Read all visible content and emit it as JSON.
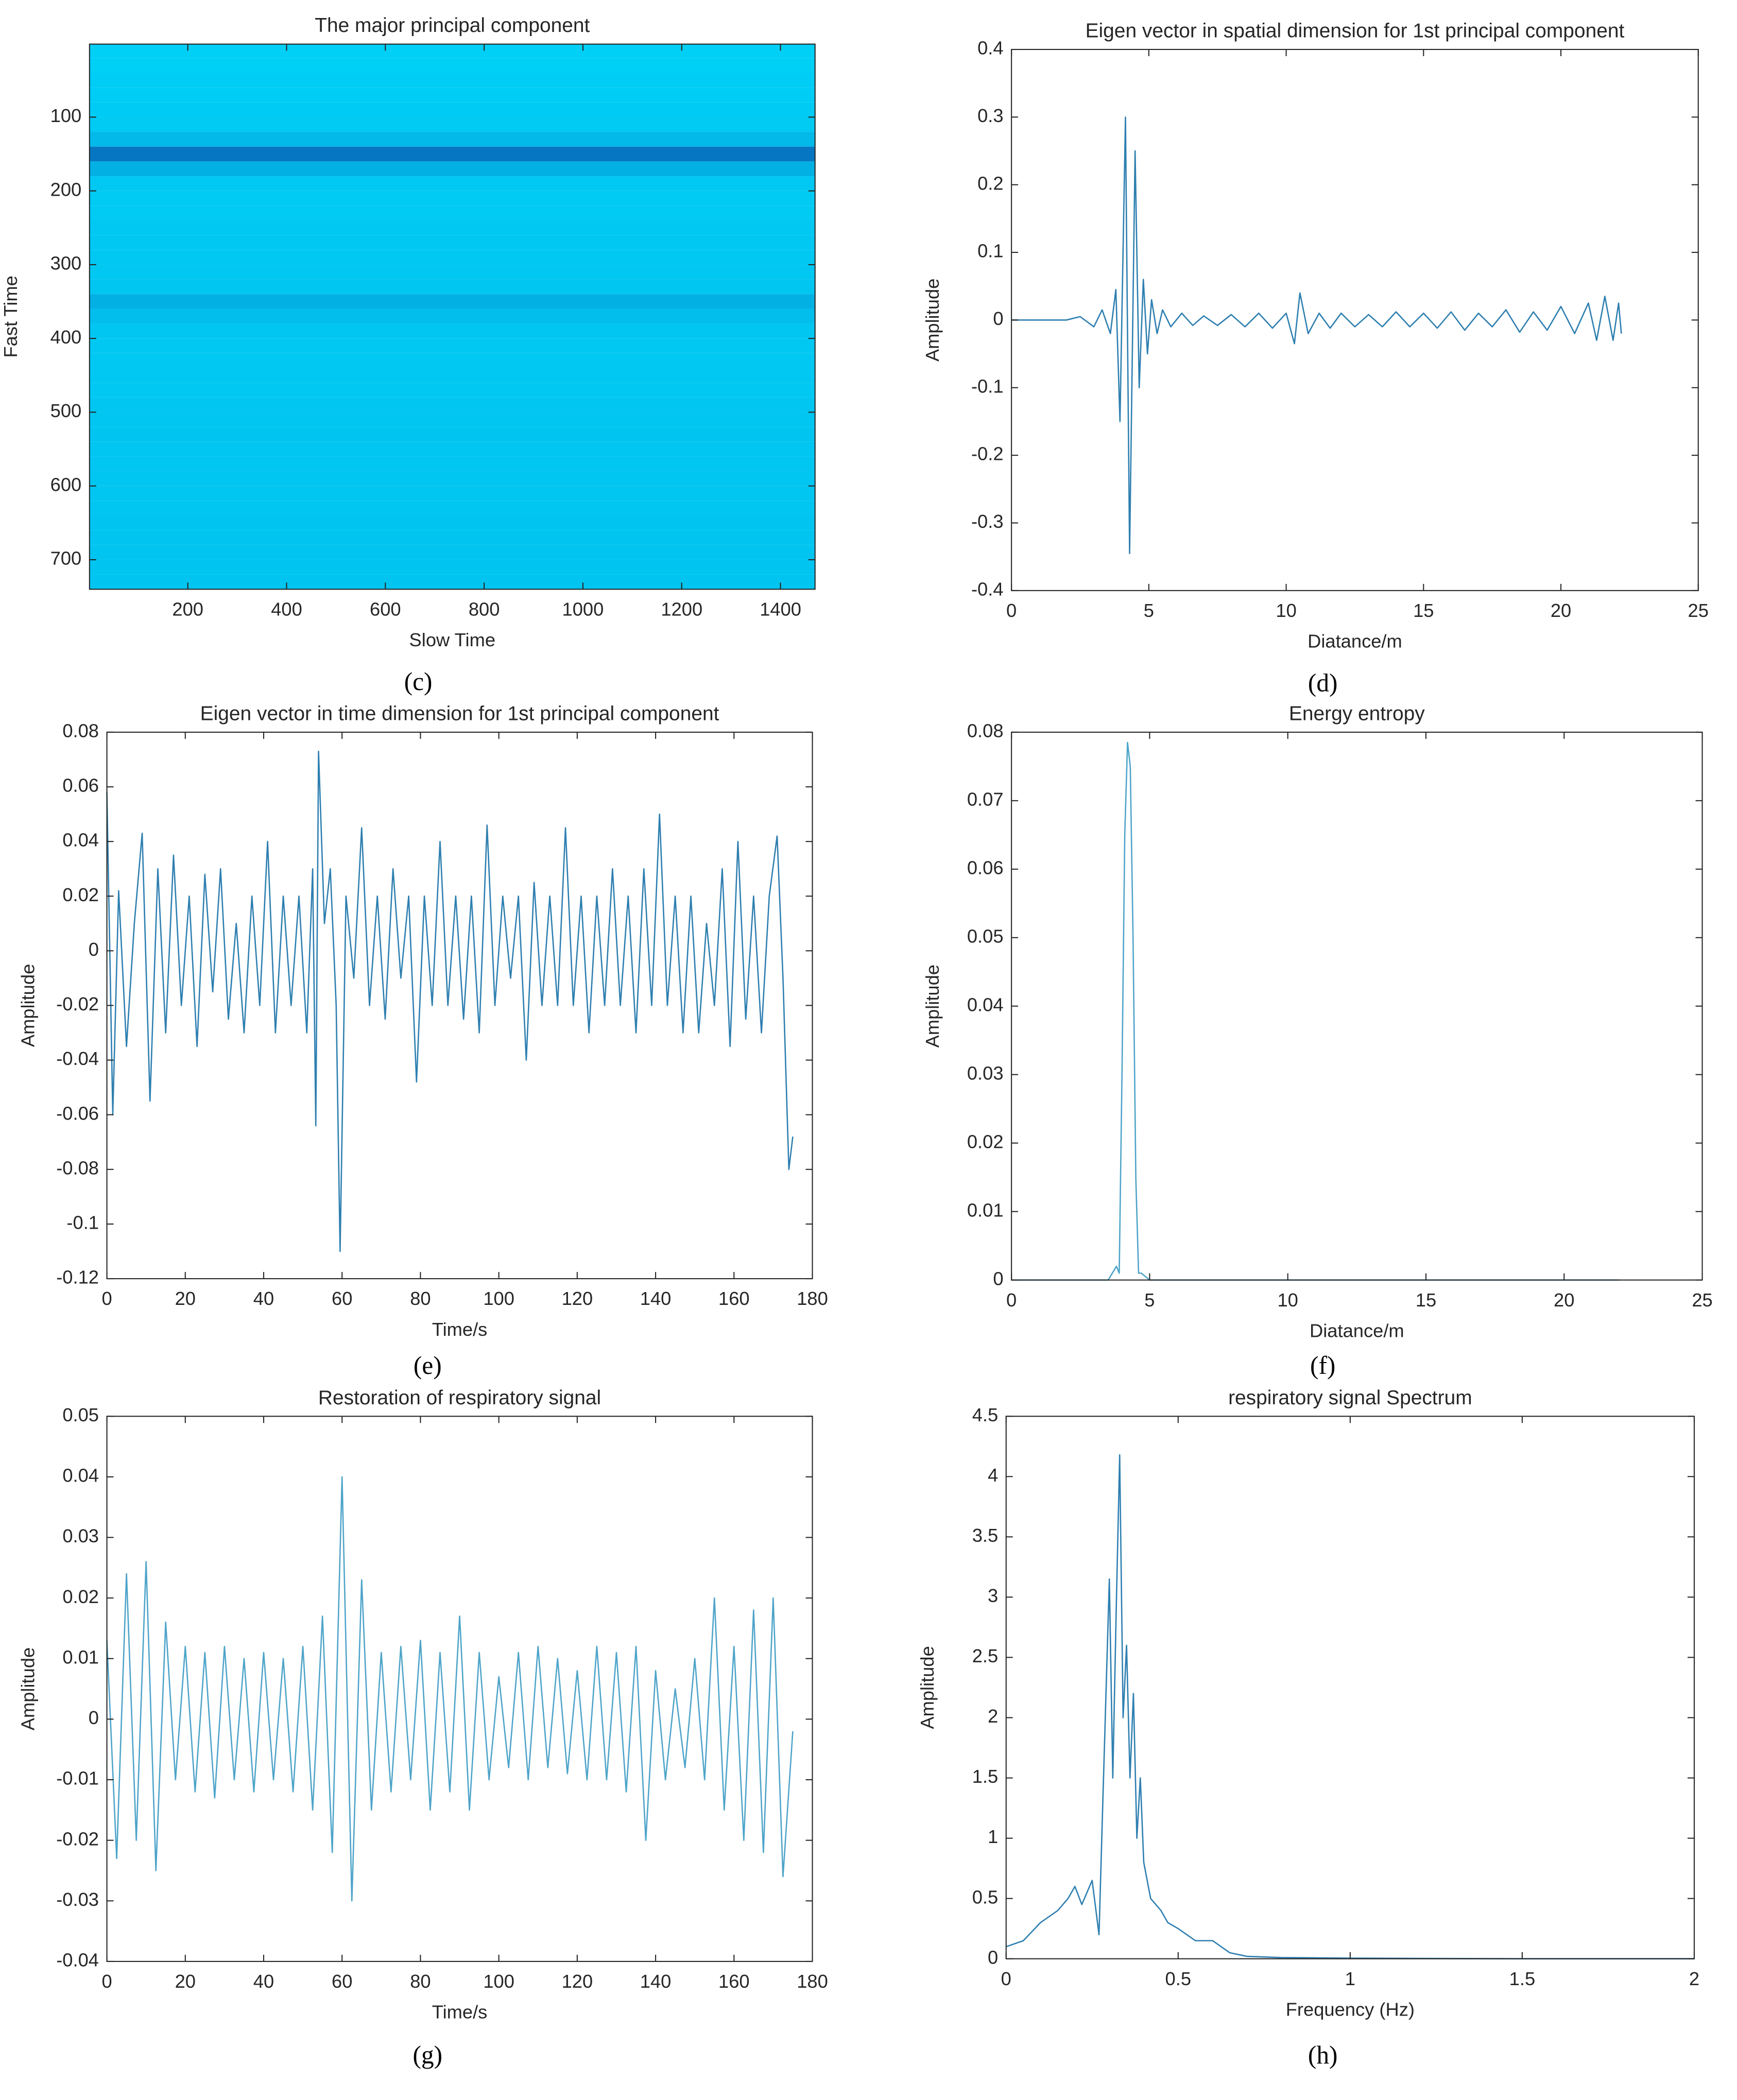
{
  "chart_data": [
    {
      "type": "heatmap",
      "title": "The major principal component",
      "xlabel": "Slow Time",
      "ylabel": "Fast Time",
      "caption": "(c)",
      "xlim": [
        1,
        1470
      ],
      "xticks": [
        200,
        400,
        600,
        800,
        1000,
        1200,
        1400
      ],
      "ylim": [
        1,
        740
      ],
      "yticks": [
        100,
        200,
        300,
        400,
        500,
        600,
        700
      ],
      "yreverse": true,
      "colors": [
        "#00d2f8",
        "#0a2a96"
      ],
      "y": [
        10,
        30,
        50,
        70,
        90,
        110,
        130,
        150,
        170,
        190,
        210,
        230,
        250,
        270,
        290,
        310,
        330,
        350,
        370,
        390,
        410,
        430,
        450,
        470,
        490,
        510,
        530,
        550,
        570,
        590,
        610,
        630,
        650,
        670,
        690,
        710,
        730
      ],
      "values": [
        0.02,
        0.02,
        0.03,
        0.03,
        0.04,
        0.05,
        0.15,
        0.55,
        0.2,
        0.06,
        0.05,
        0.05,
        0.06,
        0.06,
        0.06,
        0.06,
        0.07,
        0.2,
        0.12,
        0.07,
        0.06,
        0.06,
        0.06,
        0.06,
        0.07,
        0.07,
        0.08,
        0.07,
        0.07,
        0.07,
        0.07,
        0.07,
        0.08,
        0.08,
        0.08,
        0.08,
        0.08
      ]
    },
    {
      "type": "line",
      "title": "Eigen vector in spatial dimension for 1st principal component",
      "xlabel": "Diatance/m",
      "ylabel": "Amplitude",
      "caption": "(d)",
      "xlim": [
        0,
        25
      ],
      "xticks": [
        0,
        5,
        10,
        15,
        20,
        25
      ],
      "ylim": [
        -0.4,
        0.4
      ],
      "yticks": [
        -0.4,
        -0.3,
        -0.2,
        -0.1,
        0,
        0.1,
        0.2,
        0.3,
        0.4
      ],
      "color": "#2e7fb0",
      "x": [
        0,
        1,
        2,
        2.5,
        3,
        3.3,
        3.6,
        3.8,
        3.95,
        4.15,
        4.3,
        4.5,
        4.65,
        4.8,
        4.95,
        5.1,
        5.3,
        5.5,
        5.8,
        6.2,
        6.6,
        7,
        7.5,
        8,
        8.5,
        9,
        9.5,
        10,
        10.3,
        10.5,
        10.8,
        11.2,
        11.6,
        12,
        12.5,
        13,
        13.5,
        14,
        14.5,
        15,
        15.5,
        16,
        16.5,
        17,
        17.5,
        18,
        18.5,
        19,
        19.5,
        20,
        20.5,
        21,
        21.3,
        21.6,
        21.9,
        22.1,
        22.2
      ],
      "values": [
        0,
        0,
        0,
        0.005,
        -0.01,
        0.015,
        -0.02,
        0.045,
        -0.15,
        0.3,
        -0.345,
        0.25,
        -0.1,
        0.06,
        -0.05,
        0.03,
        -0.02,
        0.015,
        -0.01,
        0.01,
        -0.008,
        0.006,
        -0.008,
        0.008,
        -0.01,
        0.01,
        -0.012,
        0.01,
        -0.035,
        0.04,
        -0.02,
        0.01,
        -0.012,
        0.01,
        -0.01,
        0.008,
        -0.01,
        0.012,
        -0.01,
        0.01,
        -0.012,
        0.012,
        -0.015,
        0.01,
        -0.01,
        0.015,
        -0.018,
        0.012,
        -0.015,
        0.02,
        -0.02,
        0.025,
        -0.03,
        0.035,
        -0.03,
        0.025,
        -0.02
      ]
    },
    {
      "type": "line",
      "title": "Eigen vector in time dimension for 1st principal component",
      "xlabel": "Time/s",
      "ylabel": "Amplitude",
      "caption": "(e)",
      "xlim": [
        0,
        180
      ],
      "xticks": [
        0,
        20,
        40,
        60,
        80,
        100,
        120,
        140,
        160,
        180
      ],
      "ylim": [
        -0.12,
        0.08
      ],
      "yticks": [
        -0.12,
        -0.1,
        -0.08,
        -0.06,
        -0.04,
        -0.02,
        0,
        0.02,
        0.04,
        0.06,
        0.08
      ],
      "color": "#2e7fb0",
      "x": [
        0,
        1.5,
        3,
        5,
        7,
        9,
        11,
        13,
        15,
        17,
        19,
        21,
        23,
        25,
        27,
        29,
        31,
        33,
        35,
        37,
        39,
        41,
        43,
        45,
        47,
        49,
        51,
        52.5,
        53.3,
        54,
        55.5,
        57,
        58.5,
        59.5,
        61,
        63,
        65,
        67,
        69,
        71,
        73,
        75,
        77,
        79,
        81,
        83,
        85,
        87,
        89,
        91,
        93,
        95,
        97,
        99,
        101,
        103,
        105,
        107,
        109,
        111,
        113,
        115,
        117,
        119,
        121,
        123,
        125,
        127,
        129,
        131,
        133,
        135,
        137,
        139,
        141,
        143,
        145,
        147,
        149,
        151,
        153,
        155,
        157,
        159,
        161,
        163,
        165,
        167,
        169,
        171,
        172.5,
        174,
        175
      ],
      "values": [
        0.058,
        -0.06,
        0.022,
        -0.035,
        0.01,
        0.043,
        -0.055,
        0.03,
        -0.03,
        0.035,
        -0.02,
        0.02,
        -0.035,
        0.028,
        -0.015,
        0.03,
        -0.025,
        0.01,
        -0.03,
        0.02,
        -0.02,
        0.04,
        -0.03,
        0.02,
        -0.02,
        0.02,
        -0.03,
        0.03,
        -0.064,
        0.073,
        0.01,
        0.03,
        -0.02,
        -0.11,
        0.02,
        -0.01,
        0.045,
        -0.02,
        0.02,
        -0.025,
        0.03,
        -0.01,
        0.02,
        -0.048,
        0.02,
        -0.02,
        0.04,
        -0.02,
        0.02,
        -0.025,
        0.02,
        -0.03,
        0.046,
        -0.02,
        0.02,
        -0.01,
        0.02,
        -0.04,
        0.025,
        -0.02,
        0.02,
        -0.02,
        0.045,
        -0.02,
        0.02,
        -0.03,
        0.02,
        -0.02,
        0.03,
        -0.02,
        0.02,
        -0.03,
        0.03,
        -0.02,
        0.05,
        -0.02,
        0.02,
        -0.03,
        0.02,
        -0.03,
        0.01,
        -0.02,
        0.03,
        -0.035,
        0.04,
        -0.025,
        0.02,
        -0.03,
        0.02,
        0.042,
        -0.01,
        -0.08,
        -0.068
      ]
    },
    {
      "type": "line",
      "title": "Energy entropy",
      "xlabel": "Diatance/m",
      "ylabel": "Amplitude",
      "caption": "(f)",
      "xlim": [
        0,
        25
      ],
      "xticks": [
        0,
        5,
        10,
        15,
        20,
        25
      ],
      "ylim": [
        0,
        0.08
      ],
      "yticks": [
        0,
        0.01,
        0.02,
        0.03,
        0.04,
        0.05,
        0.06,
        0.07,
        0.08
      ],
      "color": "#4ea4c9",
      "x": [
        0,
        3.5,
        3.8,
        3.9,
        4.0,
        4.1,
        4.2,
        4.3,
        4.4,
        4.5,
        4.6,
        4.7,
        5,
        22
      ],
      "values": [
        0,
        0,
        0.002,
        0.001,
        0.03,
        0.065,
        0.0785,
        0.075,
        0.05,
        0.015,
        0.001,
        0.001,
        0,
        0
      ]
    },
    {
      "type": "line",
      "title": "Restoration of respiratory signal",
      "xlabel": "Time/s",
      "ylabel": "Amplitude",
      "caption": "(g)",
      "xlim": [
        0,
        180
      ],
      "xticks": [
        0,
        20,
        40,
        60,
        80,
        100,
        120,
        140,
        160,
        180
      ],
      "ylim": [
        -0.04,
        0.05
      ],
      "yticks": [
        -0.04,
        -0.03,
        -0.02,
        -0.01,
        0,
        0.01,
        0.02,
        0.03,
        0.04,
        0.05
      ],
      "color": "#4ea4c9",
      "x": [
        0,
        2.5,
        5,
        7.5,
        10,
        12.5,
        15,
        17.5,
        20,
        22.5,
        25,
        27.5,
        30,
        32.5,
        35,
        37.5,
        40,
        42.5,
        45,
        47.5,
        50,
        52.5,
        55,
        57.5,
        60,
        62.5,
        65,
        67.5,
        70,
        72.5,
        75,
        77.5,
        80,
        82.5,
        85,
        87.5,
        90,
        92.5,
        95,
        97.5,
        100,
        102.5,
        105,
        107.5,
        110,
        112.5,
        115,
        117.5,
        120,
        122.5,
        125,
        127.5,
        130,
        132.5,
        135,
        137.5,
        140,
        142.5,
        145,
        147.5,
        150,
        152.5,
        155,
        157.5,
        160,
        162.5,
        165,
        167.5,
        170,
        172.5,
        175
      ],
      "values": [
        0.013,
        -0.023,
        0.024,
        -0.02,
        0.026,
        -0.025,
        0.016,
        -0.01,
        0.012,
        -0.012,
        0.011,
        -0.013,
        0.012,
        -0.01,
        0.01,
        -0.012,
        0.011,
        -0.01,
        0.01,
        -0.012,
        0.012,
        -0.015,
        0.017,
        -0.022,
        0.04,
        -0.03,
        0.023,
        -0.015,
        0.011,
        -0.012,
        0.012,
        -0.01,
        0.013,
        -0.015,
        0.011,
        -0.012,
        0.017,
        -0.015,
        0.011,
        -0.01,
        0.007,
        -0.008,
        0.011,
        -0.01,
        0.012,
        -0.008,
        0.01,
        -0.009,
        0.008,
        -0.01,
        0.012,
        -0.01,
        0.011,
        -0.012,
        0.012,
        -0.02,
        0.008,
        -0.01,
        0.005,
        -0.008,
        0.01,
        -0.01,
        0.02,
        -0.015,
        0.012,
        -0.02,
        0.018,
        -0.022,
        0.02,
        -0.026,
        -0.002
      ]
    },
    {
      "type": "line",
      "title": "respiratory signal Spectrum",
      "xlabel": "Frequency (Hz)",
      "ylabel": "Amplitude",
      "caption": "(h)",
      "xlim": [
        0,
        2
      ],
      "xticks": [
        0,
        0.5,
        1,
        1.5,
        2
      ],
      "ylim": [
        0,
        4.5
      ],
      "yticks": [
        0,
        0.5,
        1,
        1.5,
        2,
        2.5,
        3,
        3.5,
        4,
        4.5
      ],
      "color": "#2e7fb0",
      "x": [
        0,
        0.05,
        0.1,
        0.15,
        0.18,
        0.2,
        0.22,
        0.25,
        0.27,
        0.28,
        0.3,
        0.31,
        0.32,
        0.33,
        0.34,
        0.35,
        0.36,
        0.37,
        0.38,
        0.39,
        0.4,
        0.42,
        0.45,
        0.47,
        0.5,
        0.55,
        0.6,
        0.65,
        0.7,
        0.8,
        1,
        1.5,
        2
      ],
      "values": [
        0.1,
        0.15,
        0.3,
        0.4,
        0.5,
        0.6,
        0.45,
        0.65,
        0.2,
        1.2,
        3.15,
        1.5,
        2.9,
        4.18,
        2.0,
        2.6,
        1.5,
        2.2,
        1.0,
        1.5,
        0.8,
        0.5,
        0.4,
        0.3,
        0.25,
        0.15,
        0.15,
        0.05,
        0.02,
        0.01,
        0.005,
        0,
        0
      ]
    }
  ]
}
